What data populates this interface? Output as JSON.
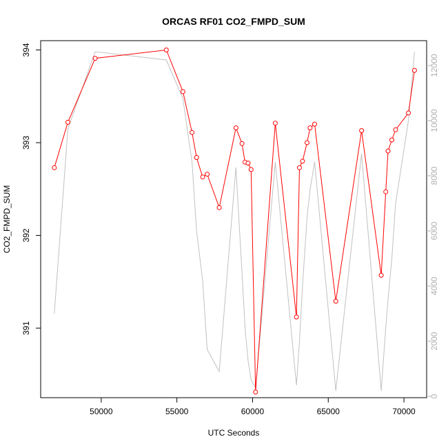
{
  "chart_data": {
    "type": "line",
    "title": "ORCAS RF01 CO2_FMPD_SUM",
    "xlabel": "UTC Seconds",
    "ylabel": "CO2_FMPD_SUM",
    "xlim": [
      46000,
      71500
    ],
    "ylim": [
      390.25,
      394.1
    ],
    "y2lim": [
      -50,
      12900
    ],
    "x_ticks": [
      50000,
      55000,
      60000,
      65000,
      70000
    ],
    "y_ticks": [
      391,
      392,
      393,
      394
    ],
    "y2_ticks": [
      0,
      2000,
      4000,
      6000,
      8000,
      10000,
      12000
    ],
    "grid": false,
    "legend": "none",
    "series": [
      {
        "axis": "left",
        "color": "#ff0000",
        "marker": "open-circle",
        "x": [
          46900,
          47800,
          49600,
          54300,
          55400,
          56000,
          56300,
          56700,
          57000,
          57800,
          58900,
          59300,
          59500,
          59700,
          59900,
          60200,
          61500,
          62900,
          63100,
          63300,
          63600,
          63800,
          64100,
          65500,
          67200,
          68500,
          68800,
          68950,
          69200,
          69450,
          70300,
          70700
        ],
        "y": [
          392.73,
          393.22,
          393.91,
          394.0,
          393.55,
          393.11,
          392.84,
          392.63,
          392.66,
          392.3,
          393.16,
          392.99,
          392.79,
          392.78,
          392.71,
          390.31,
          393.21,
          391.12,
          392.73,
          392.8,
          393.0,
          393.16,
          393.2,
          391.29,
          393.13,
          391.57,
          392.47,
          392.91,
          393.03,
          393.14,
          393.32,
          393.78
        ]
      },
      {
        "axis": "right",
        "color": "#c0c0c0",
        "x": [
          46900,
          47800,
          49600,
          54300,
          55400,
          56000,
          56300,
          56700,
          57000,
          57800,
          58900,
          59300,
          59500,
          59700,
          59900,
          60200,
          61500,
          62900,
          63100,
          63300,
          63600,
          63800,
          64100,
          65500,
          67200,
          68500,
          68800,
          68950,
          69200,
          69450,
          70300,
          70700
        ],
        "y": [
          3000,
          9700,
          12500,
          12200,
          10800,
          8500,
          6000,
          4200,
          1700,
          900,
          8300,
          4500,
          2500,
          1300,
          600,
          300,
          8500,
          400,
          2000,
          4000,
          6500,
          7500,
          8500,
          200,
          8800,
          200,
          2500,
          3500,
          5000,
          7000,
          10000,
          12500
        ]
      }
    ]
  }
}
